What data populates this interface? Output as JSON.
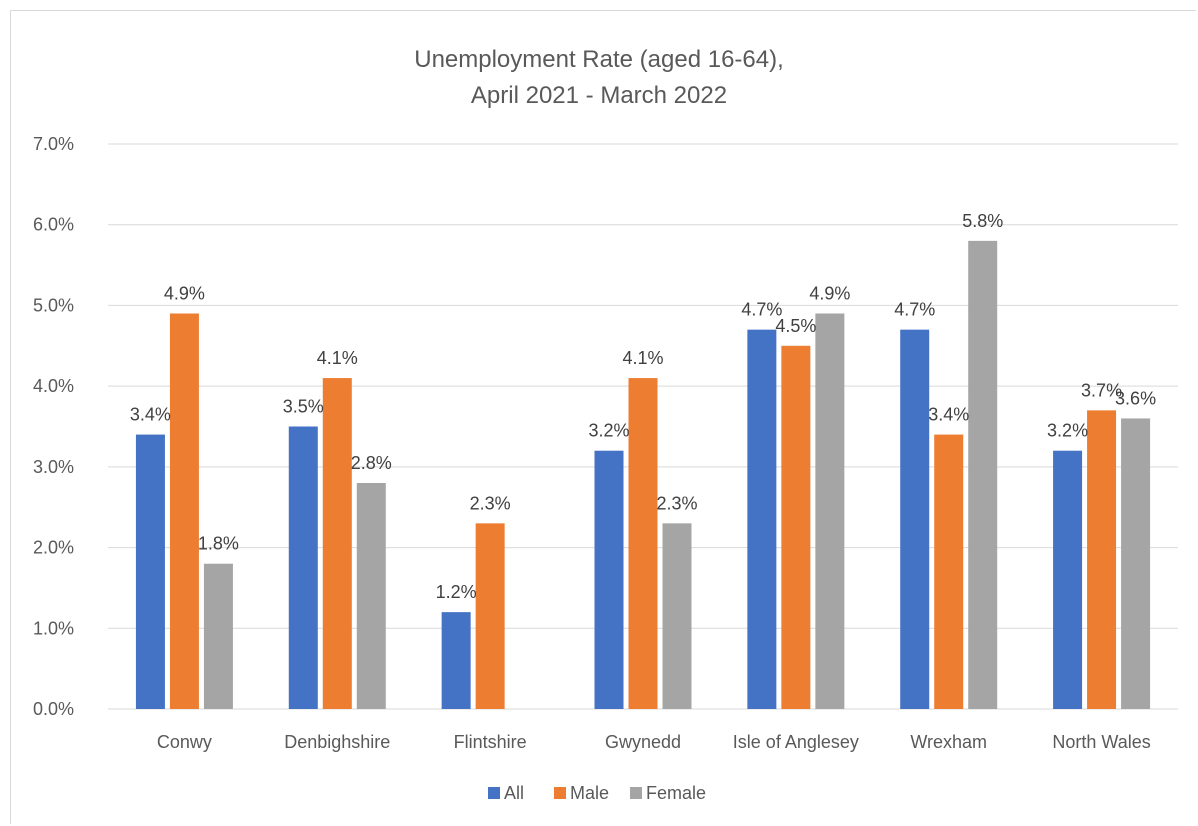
{
  "chart_data": {
    "type": "bar",
    "title": "Unemployment Rate (aged 16-64),",
    "subtitle": "April 2021 - March 2022",
    "categories": [
      "Conwy",
      "Denbighshire",
      "Flintshire",
      "Gwynedd",
      "Isle of Anglesey",
      "Wrexham",
      "North Wales"
    ],
    "series": [
      {
        "name": "All",
        "color": "#4472C4",
        "values": [
          3.4,
          3.5,
          1.2,
          3.2,
          4.7,
          4.7,
          3.2
        ],
        "labels": [
          "3.4%",
          "3.5%",
          "1.2%",
          "3.2%",
          "4.7%",
          "4.7%",
          "3.2%"
        ]
      },
      {
        "name": "Male",
        "color": "#ED7D31",
        "values": [
          4.9,
          4.1,
          2.3,
          4.1,
          4.5,
          3.4,
          3.7
        ],
        "labels": [
          "4.9%",
          "4.1%",
          "2.3%",
          "4.1%",
          "4.5%",
          "3.4%",
          "3.7%"
        ]
      },
      {
        "name": "Female",
        "color": "#A5A5A5",
        "values": [
          1.8,
          2.8,
          null,
          2.3,
          4.9,
          5.8,
          3.6
        ],
        "labels": [
          "1.8%",
          "2.8%",
          "",
          "2.3%",
          "4.9%",
          "5.8%",
          "3.6%"
        ]
      }
    ],
    "ylim": [
      0,
      7
    ],
    "yticks": [
      0,
      1,
      2,
      3,
      4,
      5,
      6,
      7
    ],
    "ytick_labels": [
      "0.0%",
      "1.0%",
      "2.0%",
      "3.0%",
      "4.0%",
      "5.0%",
      "6.0%",
      "7.0%"
    ],
    "xlabel": "",
    "ylabel": "",
    "grid": true,
    "legend_position": "bottom"
  }
}
